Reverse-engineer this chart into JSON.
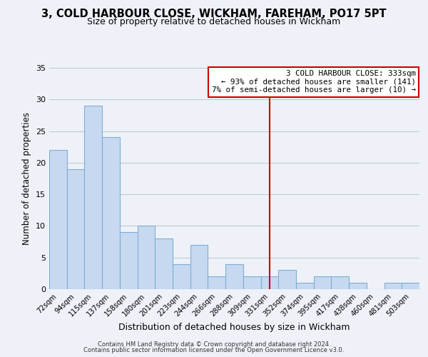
{
  "title": "3, COLD HARBOUR CLOSE, WICKHAM, FAREHAM, PO17 5PT",
  "subtitle": "Size of property relative to detached houses in Wickham",
  "xlabel": "Distribution of detached houses by size in Wickham",
  "ylabel": "Number of detached properties",
  "bar_labels": [
    "72sqm",
    "94sqm",
    "115sqm",
    "137sqm",
    "158sqm",
    "180sqm",
    "201sqm",
    "223sqm",
    "244sqm",
    "266sqm",
    "288sqm",
    "309sqm",
    "331sqm",
    "352sqm",
    "374sqm",
    "395sqm",
    "417sqm",
    "438sqm",
    "460sqm",
    "481sqm",
    "503sqm"
  ],
  "bar_values": [
    22,
    19,
    29,
    24,
    9,
    10,
    8,
    4,
    7,
    2,
    4,
    2,
    2,
    3,
    1,
    2,
    2,
    1,
    0,
    1,
    1
  ],
  "bar_color": "#c6d9f0",
  "bar_edge_color": "#7eaed3",
  "grid_color": "#c0c8d8",
  "background_color": "#eef2f8",
  "vline_x": 12,
  "vline_color": "#cc0000",
  "annotation_lines": [
    "3 COLD HARBOUR CLOSE: 333sqm",
    "← 93% of detached houses are smaller (141)",
    "7% of semi-detached houses are larger (10) →"
  ],
  "annotation_box_color": "#ffffff",
  "annotation_box_edge": "#cc0000",
  "ylim": [
    0,
    35
  ],
  "yticks": [
    0,
    5,
    10,
    15,
    20,
    25,
    30,
    35
  ],
  "footer1": "Contains HM Land Registry data © Crown copyright and database right 2024.",
  "footer2": "Contains public sector information licensed under the Open Government Licence v3.0."
}
